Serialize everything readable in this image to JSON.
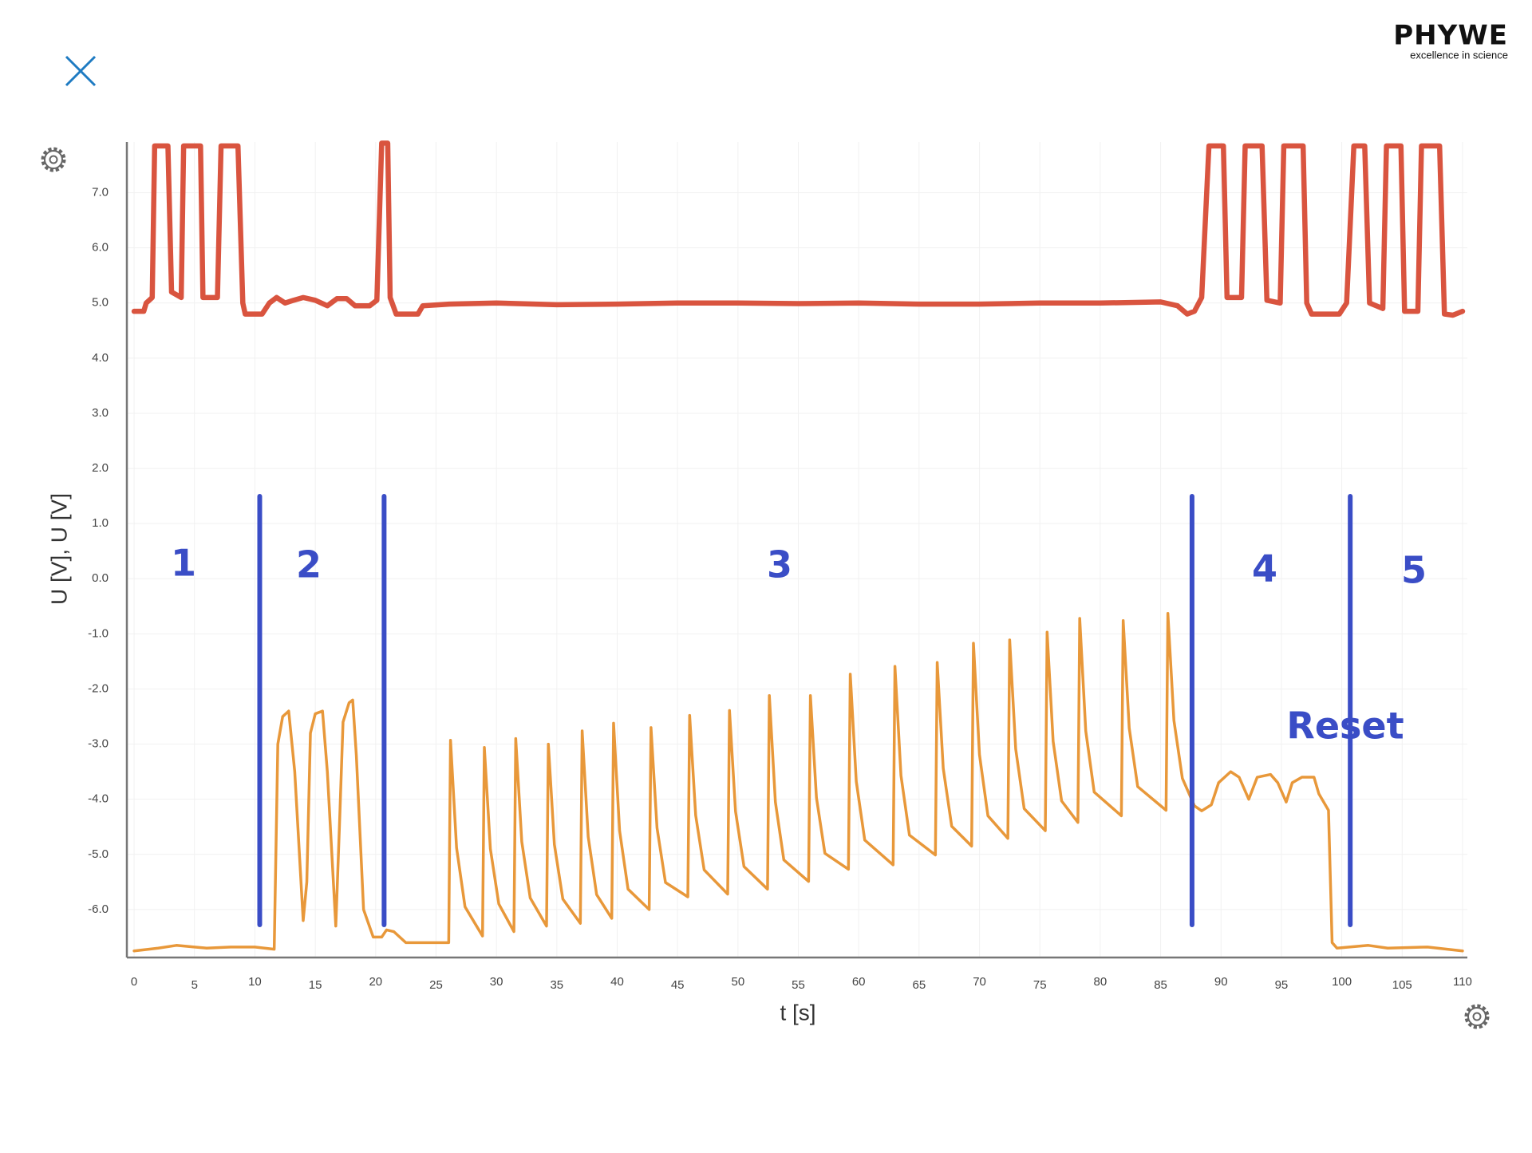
{
  "header": {
    "logo": "PHYWE",
    "tagline": "excellence in science"
  },
  "chart_data": {
    "type": "line",
    "xlabel": "t [s]",
    "ylabel": "U [V], U [V]",
    "xlim": [
      -0.6,
      110.4
    ],
    "ylim": [
      -6.87,
      7.92
    ],
    "xticks": [
      0,
      5,
      10,
      15,
      20,
      25,
      30,
      35,
      40,
      45,
      50,
      55,
      60,
      65,
      70,
      75,
      80,
      85,
      90,
      95,
      100,
      105,
      110
    ],
    "yticks": [
      {
        "value": -6,
        "label": "-6.0"
      },
      {
        "value": -5,
        "label": "-5.0"
      },
      {
        "value": -4,
        "label": "-4.0"
      },
      {
        "value": -3,
        "label": "-3.0"
      },
      {
        "value": -2,
        "label": "-2.0"
      },
      {
        "value": -1,
        "label": "-1.0"
      },
      {
        "value": 0,
        "label": "0.0"
      },
      {
        "value": 1,
        "label": "1.0"
      },
      {
        "value": 2,
        "label": "2.0"
      },
      {
        "value": 3,
        "label": "3.0"
      },
      {
        "value": 4,
        "label": "4.0"
      },
      {
        "value": 5,
        "label": "5.0"
      },
      {
        "value": 6,
        "label": "6.0"
      },
      {
        "value": 7,
        "label": "7.0"
      }
    ],
    "grid": true,
    "series": [
      {
        "color": "#d9543f",
        "x": [
          0,
          0.8,
          1.0,
          1.5,
          1.7,
          2.8,
          3.1,
          3.9,
          4.1,
          5.5,
          5.7,
          6.9,
          7.2,
          8.6,
          9.0,
          9.2,
          10.6,
          11.2,
          11.8,
          12.5,
          13.2,
          14.0,
          15.0,
          16.0,
          16.8,
          17.6,
          18.3,
          19.5,
          20.1,
          20.5,
          21.0,
          21.2,
          21.7,
          23.5,
          23.9,
          26.1,
          30,
          35,
          40,
          45,
          50,
          55,
          60,
          65,
          70,
          75,
          80,
          85,
          86.4,
          87.2,
          87.8,
          88.4,
          89.0,
          90.2,
          90.5,
          91.7,
          92.0,
          93.4,
          93.8,
          94.9,
          95.2,
          96.8,
          97.1,
          97.5,
          99.8,
          100.4,
          101.0,
          101.9,
          102.3,
          103.4,
          103.7,
          104.9,
          105.2,
          106.3,
          106.6,
          108.1,
          108.5,
          109.2,
          110
        ],
        "values": [
          4.85,
          4.85,
          5.0,
          5.1,
          7.85,
          7.85,
          5.2,
          5.1,
          7.85,
          7.85,
          5.1,
          5.1,
          7.85,
          7.85,
          5.0,
          4.8,
          4.8,
          5.0,
          5.1,
          5.0,
          5.05,
          5.1,
          5.05,
          4.95,
          5.08,
          5.08,
          4.95,
          4.95,
          5.05,
          7.9,
          7.9,
          5.1,
          4.8,
          4.8,
          4.95,
          4.98,
          5.0,
          4.97,
          4.98,
          5.0,
          5.0,
          4.99,
          5.0,
          4.98,
          4.98,
          5.0,
          5.0,
          5.02,
          4.95,
          4.8,
          4.85,
          5.1,
          7.85,
          7.85,
          5.1,
          5.1,
          7.85,
          7.85,
          5.05,
          5.0,
          7.85,
          7.85,
          5.0,
          4.8,
          4.8,
          5.0,
          7.85,
          7.85,
          5.0,
          4.9,
          7.85,
          7.85,
          4.85,
          4.85,
          7.85,
          7.85,
          4.8,
          4.78,
          4.85
        ]
      },
      {
        "color": "#e8983a",
        "x": [
          0,
          2,
          3.5,
          5,
          6,
          8,
          10,
          11.6,
          11.9,
          12.3,
          12.8,
          13.3,
          14.0,
          14.3,
          14.6,
          15.0,
          15.6,
          16.0,
          16.7,
          17.0,
          17.3,
          17.8,
          18.1,
          18.4,
          19.0,
          19.8,
          20.5,
          20.9,
          21.5,
          22.5,
          26.05,
          26.2,
          26.7,
          27.4,
          28.85,
          29.0,
          29.5,
          30.2,
          31.45,
          31.6,
          32.1,
          32.8,
          34.15,
          34.3,
          34.8,
          35.5,
          36.95,
          37.1,
          37.6,
          38.3,
          39.55,
          39.7,
          40.2,
          40.9,
          42.65,
          42.8,
          43.3,
          44.0,
          45.85,
          46.0,
          46.5,
          47.2,
          49.15,
          49.3,
          49.8,
          50.5,
          52.45,
          52.6,
          53.1,
          53.8,
          55.85,
          56.0,
          56.5,
          57.2,
          59.15,
          59.3,
          59.8,
          60.5,
          62.85,
          63.0,
          63.5,
          64.2,
          66.35,
          66.5,
          67.0,
          67.7,
          69.35,
          69.5,
          70.0,
          70.7,
          72.35,
          72.5,
          73.0,
          73.7,
          75.45,
          75.6,
          76.1,
          76.8,
          78.15,
          78.3,
          78.8,
          79.5,
          81.75,
          81.9,
          82.4,
          83.1,
          85.45,
          85.6,
          86.1,
          86.8,
          87.8,
          88.4,
          89.2,
          89.8,
          90.8,
          91.5,
          92.3,
          93.0,
          94.1,
          94.7,
          95.4,
          95.9,
          96.7,
          97.7,
          98.1,
          98.9,
          99.2,
          99.6,
          102.2,
          103.8,
          107.1,
          110
        ],
        "values": [
          -6.75,
          -6.7,
          -6.65,
          -6.68,
          -6.7,
          -6.68,
          -6.68,
          -6.72,
          -3.0,
          -2.5,
          -2.4,
          -3.5,
          -6.2,
          -5.5,
          -2.8,
          -2.45,
          -2.4,
          -3.5,
          -6.3,
          -4.5,
          -2.6,
          -2.25,
          -2.2,
          -3.2,
          -6.0,
          -6.5,
          -6.5,
          -6.37,
          -6.4,
          -6.6,
          -6.6,
          -2.93,
          -4.88,
          -5.95,
          -6.48,
          -3.06,
          -4.9,
          -5.9,
          -6.4,
          -2.9,
          -4.77,
          -5.79,
          -6.3,
          -3.0,
          -4.82,
          -5.81,
          -6.25,
          -2.76,
          -4.68,
          -5.73,
          -6.16,
          -2.62,
          -4.57,
          -5.63,
          -6.0,
          -2.7,
          -4.52,
          -5.51,
          -5.77,
          -2.48,
          -4.29,
          -5.28,
          -5.72,
          -2.39,
          -4.22,
          -5.22,
          -5.63,
          -2.12,
          -4.05,
          -5.1,
          -5.49,
          -2.12,
          -3.97,
          -4.98,
          -5.27,
          -1.73,
          -3.68,
          -4.74,
          -5.19,
          -1.59,
          -3.57,
          -4.65,
          -5.01,
          -1.52,
          -3.44,
          -4.49,
          -4.85,
          -1.17,
          -3.19,
          -4.3,
          -4.71,
          -1.11,
          -3.09,
          -4.17,
          -4.57,
          -0.97,
          -2.95,
          -4.03,
          -4.42,
          -0.72,
          -2.76,
          -3.87,
          -4.3,
          -0.76,
          -2.71,
          -3.77,
          -4.2,
          -0.63,
          -2.57,
          -3.62,
          -4.12,
          -4.21,
          -4.1,
          -3.7,
          -3.5,
          -3.6,
          -4.0,
          -3.6,
          -3.55,
          -3.7,
          -4.05,
          -3.7,
          -3.6,
          -3.6,
          -3.9,
          -4.2,
          -6.6,
          -6.7,
          -6.65,
          -6.7,
          -6.68,
          -6.75
        ]
      }
    ],
    "vlines": [
      10.4,
      20.7,
      87.6,
      100.7
    ],
    "vline_color": "#3a4dc6",
    "annotations": [
      "1",
      "2",
      "3",
      "4",
      "5",
      "Reset"
    ]
  }
}
